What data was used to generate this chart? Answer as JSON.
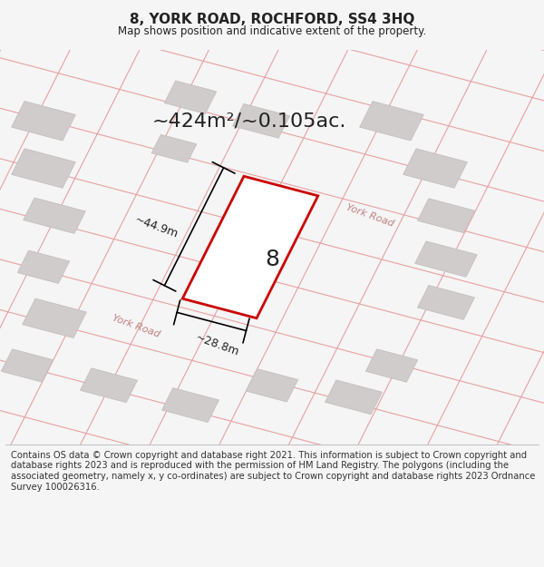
{
  "title": "8, YORK ROAD, ROCHFORD, SS4 3HQ",
  "subtitle": "Map shows position and indicative extent of the property.",
  "area_text": "~424m²/~0.105ac.",
  "width_label": "~28.8m",
  "height_label": "~44.9m",
  "number_label": "8",
  "footer_text": "Contains OS data © Crown copyright and database right 2021. This information is subject to Crown copyright and database rights 2023 and is reproduced with the permission of HM Land Registry. The polygons (including the associated geometry, namely x, y co-ordinates) are subject to Crown copyright and database rights 2023 Ordnance Survey 100026316.",
  "bg_color": "#f5f5f5",
  "map_bg": "#f0eeee",
  "grid_color": "#e8a0a0",
  "building_color": "#d0cccc",
  "building_edge": "#c0bbbb",
  "plot_color": "#ffffff",
  "plot_edge": "#cc0000",
  "road_label_color": "#c08080",
  "title_color": "#222222",
  "text_color": "#222222",
  "footer_color": "#333333",
  "figwidth": 6.0,
  "figheight": 6.25,
  "dpi": 100
}
